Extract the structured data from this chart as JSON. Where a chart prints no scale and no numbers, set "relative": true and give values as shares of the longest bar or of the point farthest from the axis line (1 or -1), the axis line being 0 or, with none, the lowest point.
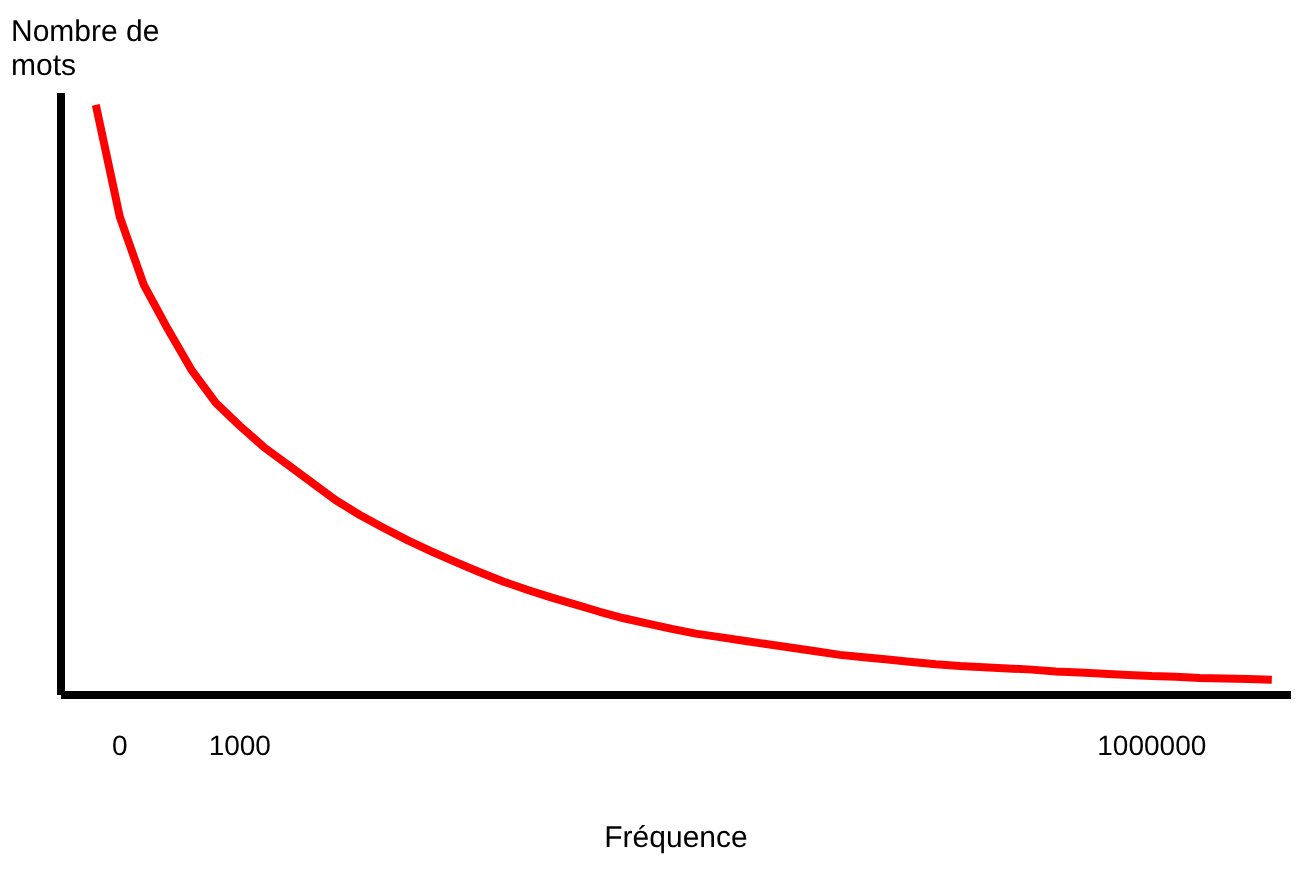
{
  "chart_data": {
    "type": "line",
    "relative": true,
    "xlabel": "Fréquence",
    "ylabel": "Nombre de\nmots",
    "categories": [
      null,
      "0",
      null,
      null,
      null,
      null,
      "1000",
      null,
      null,
      null,
      null,
      null,
      null,
      null,
      null,
      null,
      null,
      null,
      null,
      null,
      null,
      null,
      null,
      null,
      null,
      null,
      null,
      null,
      null,
      null,
      null,
      null,
      null,
      null,
      null,
      null,
      null,
      null,
      null,
      null,
      null,
      null,
      null,
      null,
      "1000000",
      null,
      null,
      null,
      null,
      null
    ],
    "series": [
      {
        "color": "#ff0000",
        "values": [
          1.0,
          0.81,
          0.695,
          0.62,
          0.55,
          0.495,
          0.456,
          0.42,
          0.39,
          0.36,
          0.33,
          0.305,
          0.283,
          0.262,
          0.243,
          0.225,
          0.208,
          0.192,
          0.178,
          0.165,
          0.153,
          0.141,
          0.13,
          0.121,
          0.112,
          0.104,
          0.098,
          0.092,
          0.086,
          0.08,
          0.074,
          0.068,
          0.064,
          0.06,
          0.056,
          0.052,
          0.049,
          0.047,
          0.045,
          0.043,
          0.04,
          0.038,
          0.036,
          0.034,
          0.032,
          0.031,
          0.029,
          0.028,
          0.027,
          0.026
        ]
      }
    ],
    "grid": false,
    "marker": "none",
    "line_style": "solid"
  }
}
